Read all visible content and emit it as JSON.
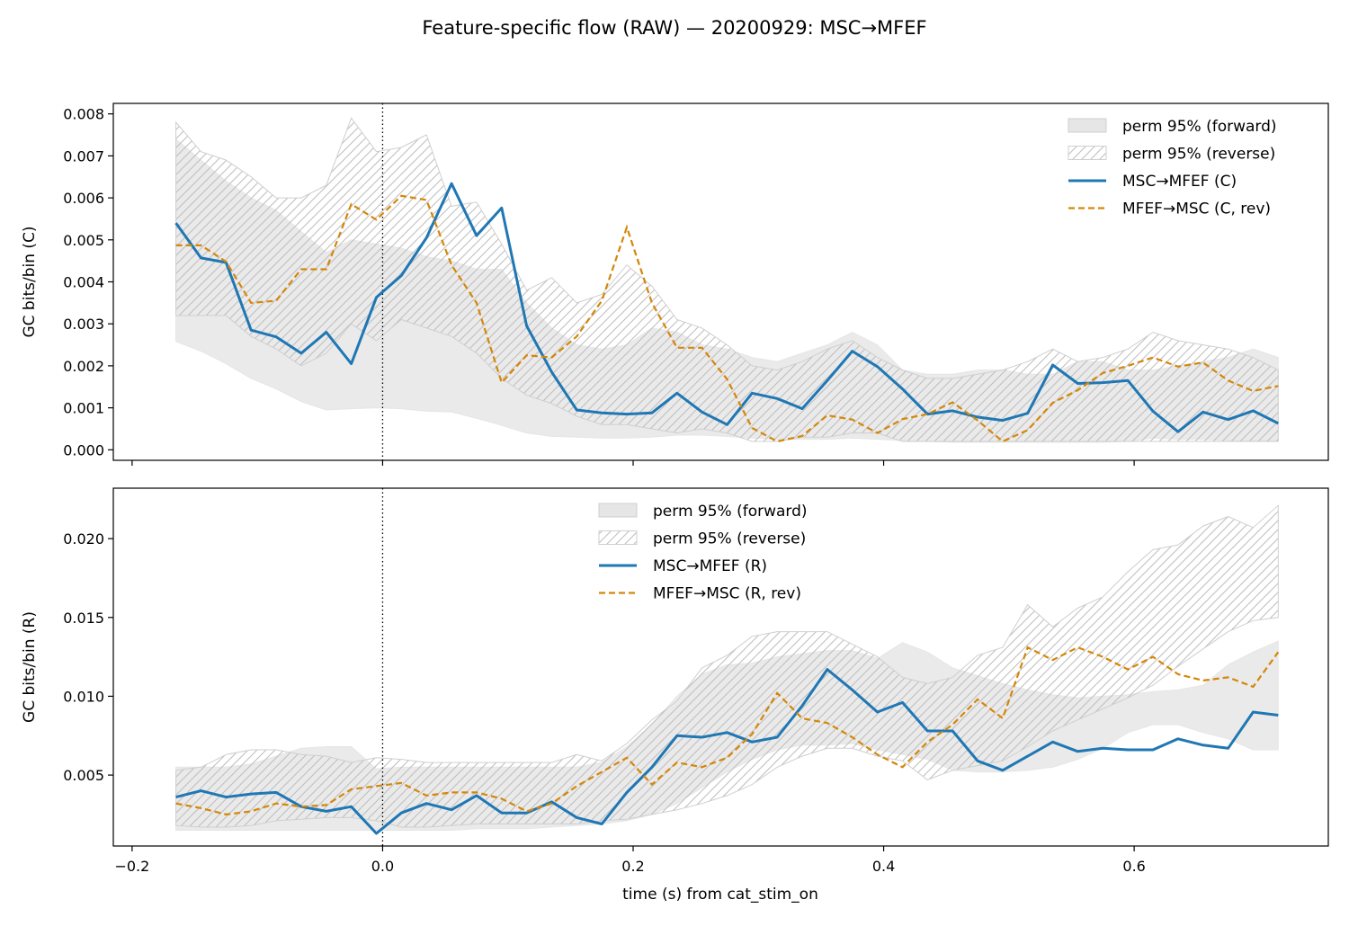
{
  "title": "Feature-specific flow (RAW) — 20200929: MSC→MFEF",
  "xlabel": "time (s) from cat_stim_on",
  "colors": {
    "forward_line": "#1f77b4",
    "reverse_line": "#d4870a",
    "band_fill": "#e6e6e6",
    "band_edge": "#cfcfcf",
    "hatch": "#bdbdbd"
  },
  "chart_data": [
    {
      "type": "line",
      "panel": "top",
      "ylabel": "GC bits/bin (C)",
      "xlim": [
        -0.215,
        0.755
      ],
      "ylim": [
        -0.00025,
        0.00825
      ],
      "xticks": [
        -0.2,
        0.0,
        0.2,
        0.4,
        0.6
      ],
      "xtick_labels": [
        "",
        "",
        "",
        "",
        ""
      ],
      "yticks": [
        0.0,
        0.001,
        0.002,
        0.003,
        0.004,
        0.005,
        0.006,
        0.007,
        0.008
      ],
      "ytick_labels": [
        "0.000",
        "0.001",
        "0.002",
        "0.003",
        "0.004",
        "0.005",
        "0.006",
        "0.007",
        "0.008"
      ],
      "vline_x": 0.0,
      "legend_position": "upper right",
      "legend": [
        "perm 95% (forward)",
        "perm 95% (reverse)",
        "MSC→MFEF (C)",
        "MFEF→MSC (C, rev)"
      ],
      "x": [
        -0.165,
        -0.145,
        -0.125,
        -0.105,
        -0.085,
        -0.065,
        -0.045,
        -0.025,
        -0.005,
        0.015,
        0.035,
        0.055,
        0.075,
        0.095,
        0.115,
        0.135,
        0.155,
        0.175,
        0.195,
        0.215,
        0.235,
        0.255,
        0.275,
        0.295,
        0.315,
        0.335,
        0.355,
        0.375,
        0.395,
        0.415,
        0.435,
        0.455,
        0.475,
        0.495,
        0.515,
        0.535,
        0.555,
        0.575,
        0.595,
        0.615,
        0.635,
        0.655,
        0.675,
        0.695,
        0.715
      ],
      "series": [
        {
          "name": "MSC→MFEF (C)",
          "role": "forward",
          "values": [
            0.0054,
            0.00457,
            0.00446,
            0.00285,
            0.00269,
            0.0023,
            0.0028,
            0.00205,
            0.00363,
            0.00415,
            0.00505,
            0.00634,
            0.0051,
            0.00576,
            0.00295,
            0.00185,
            0.00095,
            0.00088,
            0.00085,
            0.00088,
            0.00135,
            0.0009,
            0.0006,
            0.00135,
            0.00122,
            0.00098,
            0.00165,
            0.00235,
            0.00198,
            0.00145,
            0.00085,
            0.00093,
            0.00078,
            0.0007,
            0.00087,
            0.00202,
            0.00158,
            0.0016,
            0.00165,
            0.00092,
            0.00043,
            0.0009,
            0.00072,
            0.00093,
            0.00063
          ]
        },
        {
          "name": "MFEF→MSC (C, rev)",
          "role": "reverse",
          "values": [
            0.00487,
            0.00487,
            0.00448,
            0.0035,
            0.00355,
            0.0043,
            0.0043,
            0.00585,
            0.00548,
            0.00605,
            0.00595,
            0.0044,
            0.0035,
            0.0016,
            0.00225,
            0.0022,
            0.0027,
            0.00355,
            0.0053,
            0.0035,
            0.00243,
            0.00243,
            0.00168,
            0.00052,
            0.0002,
            0.00033,
            0.00082,
            0.00072,
            0.0004,
            0.00073,
            0.00085,
            0.00113,
            0.0007,
            0.0002,
            0.00047,
            0.00112,
            0.00142,
            0.00183,
            0.002,
            0.0022,
            0.00198,
            0.00208,
            0.00165,
            0.0014,
            0.00152
          ]
        }
      ],
      "bands": [
        {
          "name": "perm 95% (forward)",
          "style": "filled",
          "lower": [
            0.00258,
            0.00235,
            0.00205,
            0.0017,
            0.00145,
            0.00115,
            0.00095,
            0.00098,
            0.001,
            0.00098,
            0.00092,
            0.0009,
            0.00075,
            0.00058,
            0.0004,
            0.00032,
            0.0003,
            0.00028,
            0.00028,
            0.0003,
            0.00035,
            0.00035,
            0.00032,
            0.00028,
            0.00025,
            0.00025,
            0.00025,
            0.00028,
            0.00025,
            0.00022,
            0.0002,
            0.00018,
            0.00018,
            0.00018,
            0.00018,
            0.00018,
            0.00018,
            0.00018,
            0.0002,
            0.00028,
            0.00025,
            0.00025,
            0.00022,
            0.00022,
            0.00022
          ],
          "upper": [
            0.0074,
            0.0069,
            0.0064,
            0.006,
            0.0057,
            0.0052,
            0.0047,
            0.005,
            0.0049,
            0.0048,
            0.0046,
            0.0045,
            0.0043,
            0.0043,
            0.0035,
            0.0029,
            0.0025,
            0.0024,
            0.0025,
            0.0029,
            0.0028,
            0.0025,
            0.0024,
            0.0022,
            0.0021,
            0.0023,
            0.0025,
            0.0028,
            0.0025,
            0.0019,
            0.0018,
            0.0018,
            0.0019,
            0.0019,
            0.0018,
            0.0018,
            0.0021,
            0.0021,
            0.0019,
            0.0019,
            0.002,
            0.0021,
            0.0022,
            0.0024,
            0.0022
          ]
        },
        {
          "name": "perm 95% (reverse)",
          "style": "hatched",
          "lower": [
            0.0032,
            0.0032,
            0.0032,
            0.0027,
            0.0024,
            0.002,
            0.0023,
            0.003,
            0.0026,
            0.0031,
            0.0029,
            0.0027,
            0.0023,
            0.0017,
            0.0013,
            0.0011,
            0.0008,
            0.0006,
            0.0006,
            0.0005,
            0.0004,
            0.0005,
            0.0004,
            0.0002,
            0.0002,
            0.0003,
            0.0003,
            0.0004,
            0.0004,
            0.0002,
            0.0002,
            0.0002,
            0.0002,
            0.0002,
            0.0002,
            0.0002,
            0.0002,
            0.0002,
            0.0002,
            0.0002,
            0.0002,
            0.0002,
            0.0002,
            0.0002,
            0.0002
          ],
          "upper": [
            0.0078,
            0.0071,
            0.0069,
            0.0065,
            0.006,
            0.006,
            0.0063,
            0.0079,
            0.0071,
            0.0072,
            0.0075,
            0.0058,
            0.0059,
            0.0049,
            0.0038,
            0.0041,
            0.0035,
            0.0037,
            0.0044,
            0.0039,
            0.0031,
            0.0029,
            0.0025,
            0.002,
            0.0019,
            0.0021,
            0.0024,
            0.0026,
            0.0022,
            0.0019,
            0.0017,
            0.0017,
            0.0018,
            0.0019,
            0.0021,
            0.0024,
            0.0021,
            0.0022,
            0.0024,
            0.0028,
            0.0026,
            0.0025,
            0.0024,
            0.0022,
            0.0019
          ]
        }
      ]
    },
    {
      "type": "line",
      "panel": "bottom",
      "ylabel": "GC bits/bin (R)",
      "xlim": [
        -0.215,
        0.755
      ],
      "ylim": [
        0.0005,
        0.0232
      ],
      "xticks": [
        -0.2,
        0.0,
        0.2,
        0.4,
        0.6
      ],
      "xtick_labels": [
        "−0.2",
        "0.0",
        "0.2",
        "0.4",
        "0.6"
      ],
      "yticks": [
        0.005,
        0.01,
        0.015,
        0.02
      ],
      "ytick_labels": [
        "0.005",
        "0.010",
        "0.015",
        "0.020"
      ],
      "vline_x": 0.0,
      "legend_position": "upper center",
      "legend": [
        "perm 95% (forward)",
        "perm 95% (reverse)",
        "MSC→MFEF (R)",
        "MFEF→MSC (R, rev)"
      ],
      "x": [
        -0.165,
        -0.145,
        -0.125,
        -0.105,
        -0.085,
        -0.065,
        -0.045,
        -0.025,
        -0.005,
        0.015,
        0.035,
        0.055,
        0.075,
        0.095,
        0.115,
        0.135,
        0.155,
        0.175,
        0.195,
        0.215,
        0.235,
        0.255,
        0.275,
        0.295,
        0.315,
        0.335,
        0.355,
        0.375,
        0.395,
        0.415,
        0.435,
        0.455,
        0.475,
        0.495,
        0.515,
        0.535,
        0.555,
        0.575,
        0.595,
        0.615,
        0.635,
        0.655,
        0.675,
        0.695,
        0.715
      ],
      "series": [
        {
          "name": "MSC→MFEF (R)",
          "role": "forward",
          "values": [
            0.0036,
            0.004,
            0.0036,
            0.0038,
            0.0039,
            0.003,
            0.0027,
            0.003,
            0.0013,
            0.0026,
            0.0032,
            0.0028,
            0.0037,
            0.0026,
            0.0026,
            0.0033,
            0.0023,
            0.0019,
            0.0039,
            0.0055,
            0.0075,
            0.0074,
            0.0077,
            0.0071,
            0.0074,
            0.0094,
            0.0117,
            0.0104,
            0.009,
            0.0096,
            0.0078,
            0.0078,
            0.0059,
            0.0053,
            0.0062,
            0.0071,
            0.0065,
            0.0067,
            0.0066,
            0.0066,
            0.0073,
            0.0069,
            0.0067,
            0.009,
            0.0088
          ]
        },
        {
          "name": "MFEF→MSC (R, rev)",
          "role": "reverse",
          "values": [
            0.0032,
            0.0029,
            0.0025,
            0.0027,
            0.0032,
            0.003,
            0.0031,
            0.0041,
            0.0043,
            0.0045,
            0.0037,
            0.0039,
            0.0039,
            0.0035,
            0.0027,
            0.0032,
            0.0043,
            0.0052,
            0.0061,
            0.0044,
            0.0058,
            0.0055,
            0.0061,
            0.0076,
            0.0102,
            0.0086,
            0.0083,
            0.0074,
            0.0063,
            0.0055,
            0.0071,
            0.0082,
            0.0098,
            0.0086,
            0.0131,
            0.0123,
            0.0131,
            0.0125,
            0.0117,
            0.0125,
            0.0114,
            0.011,
            0.0112,
            0.0106,
            0.0128
          ]
        }
      ],
      "bands": [
        {
          "name": "perm 95% (forward)",
          "style": "filled",
          "lower": [
            0.0015,
            0.0015,
            0.0015,
            0.0015,
            0.0015,
            0.0015,
            0.0015,
            0.0015,
            0.0015,
            0.0015,
            0.0015,
            0.0015,
            0.0016,
            0.0016,
            0.0016,
            0.0017,
            0.0018,
            0.0019,
            0.0021,
            0.0025,
            0.0032,
            0.0042,
            0.0052,
            0.006,
            0.0066,
            0.0069,
            0.0069,
            0.007,
            0.0066,
            0.0063,
            0.006,
            0.0053,
            0.0052,
            0.0052,
            0.0053,
            0.0055,
            0.006,
            0.0067,
            0.0077,
            0.0082,
            0.0082,
            0.0077,
            0.0073,
            0.0066,
            0.0066
          ],
          "upper": [
            0.0055,
            0.0055,
            0.0055,
            0.0057,
            0.0062,
            0.0067,
            0.0068,
            0.0068,
            0.0054,
            0.0055,
            0.0055,
            0.0055,
            0.0055,
            0.0055,
            0.0055,
            0.0055,
            0.0055,
            0.0058,
            0.0068,
            0.0082,
            0.01,
            0.0114,
            0.012,
            0.0121,
            0.0125,
            0.0127,
            0.0129,
            0.0129,
            0.0124,
            0.0134,
            0.0128,
            0.0118,
            0.0113,
            0.0108,
            0.0104,
            0.0101,
            0.0099,
            0.01,
            0.0101,
            0.0103,
            0.0104,
            0.0107,
            0.012,
            0.0128,
            0.0135
          ]
        },
        {
          "name": "perm 95% (reverse)",
          "style": "hatched",
          "lower": [
            0.0018,
            0.0017,
            0.0017,
            0.0018,
            0.0021,
            0.0022,
            0.0023,
            0.0023,
            0.0021,
            0.0017,
            0.0017,
            0.0018,
            0.0019,
            0.0019,
            0.0019,
            0.0019,
            0.0019,
            0.0021,
            0.0022,
            0.0025,
            0.0028,
            0.0032,
            0.0037,
            0.0044,
            0.0055,
            0.0062,
            0.0067,
            0.0067,
            0.0062,
            0.0059,
            0.0047,
            0.0053,
            0.0056,
            0.0059,
            0.0068,
            0.0078,
            0.0085,
            0.0092,
            0.0099,
            0.0107,
            0.0119,
            0.013,
            0.0141,
            0.0148,
            0.015
          ],
          "upper": [
            0.0053,
            0.0055,
            0.0063,
            0.0066,
            0.0066,
            0.0063,
            0.0062,
            0.0058,
            0.0061,
            0.006,
            0.0058,
            0.0058,
            0.0058,
            0.0058,
            0.0058,
            0.0058,
            0.0063,
            0.0059,
            0.007,
            0.0085,
            0.0097,
            0.0118,
            0.0126,
            0.0138,
            0.0141,
            0.0141,
            0.0141,
            0.0133,
            0.0125,
            0.0112,
            0.0108,
            0.0112,
            0.0126,
            0.0131,
            0.0158,
            0.0144,
            0.0156,
            0.0163,
            0.0179,
            0.0193,
            0.0196,
            0.0208,
            0.0214,
            0.0207,
            0.0221
          ]
        }
      ]
    }
  ]
}
